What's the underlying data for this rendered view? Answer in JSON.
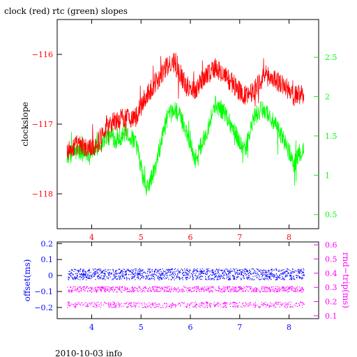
{
  "chart_data": [
    {
      "type": "line",
      "title": "clock (red) rtc (green) slopes",
      "xlabel": "",
      "ylabel": "clockslope",
      "xlim": [
        3.3,
        8.6
      ],
      "ylim": [
        -118.5,
        -115.5
      ],
      "y2lim": [
        0.32,
        2.98
      ],
      "x_ticks": [
        4,
        5,
        6,
        7,
        8
      ],
      "y_ticks": [
        -118,
        -117,
        -116
      ],
      "y2_ticks": [
        0.5,
        1,
        1.5,
        2,
        2.5
      ],
      "x_tick_labels": [
        "4",
        "5",
        "6",
        "7",
        "8"
      ],
      "y_tick_labels": [
        "−118",
        "−117",
        "−116"
      ],
      "y2_tick_labels": [
        "0.5",
        "1",
        "1.5",
        "2",
        "2.5"
      ],
      "grid": false,
      "series": [
        {
          "name": "clock",
          "color": "#ff0000",
          "axis": "left",
          "x": [
            3.5,
            3.7,
            3.9,
            4.1,
            4.3,
            4.5,
            4.7,
            4.9,
            5.1,
            5.3,
            5.5,
            5.7,
            5.9,
            6.1,
            6.3,
            6.5,
            6.7,
            6.9,
            7.1,
            7.3,
            7.5,
            7.7,
            7.9,
            8.1,
            8.3
          ],
          "y": [
            -117.4,
            -117.3,
            -117.35,
            -117.3,
            -117.0,
            -116.95,
            -116.9,
            -116.9,
            -116.6,
            -116.4,
            -116.2,
            -116.1,
            -116.45,
            -116.5,
            -116.3,
            -116.2,
            -116.3,
            -116.45,
            -116.6,
            -116.5,
            -116.3,
            -116.35,
            -116.45,
            -116.6,
            -116.55
          ],
          "noise": 0.15
        },
        {
          "name": "rtc",
          "color": "#00ff00",
          "axis": "right",
          "x": [
            3.5,
            3.7,
            3.9,
            4.1,
            4.3,
            4.5,
            4.7,
            4.9,
            5.1,
            5.3,
            5.5,
            5.7,
            5.9,
            6.1,
            6.3,
            6.5,
            6.7,
            6.9,
            7.1,
            7.3,
            7.5,
            7.7,
            7.9,
            8.1,
            8.3
          ],
          "y": [
            1.25,
            1.3,
            1.28,
            1.35,
            1.5,
            1.45,
            1.55,
            1.4,
            0.8,
            1.1,
            1.7,
            1.85,
            1.6,
            1.2,
            1.5,
            1.9,
            1.8,
            1.55,
            1.3,
            1.75,
            1.85,
            1.65,
            1.45,
            1.15,
            1.35
          ],
          "noise": 0.12
        }
      ]
    },
    {
      "type": "scatter",
      "title": "",
      "xlabel": "",
      "ylabel": "offset(ms)",
      "y2label": "rnd−trip(ms)",
      "xlim": [
        3.3,
        8.6
      ],
      "ylim": [
        -0.27,
        0.21
      ],
      "y2lim": [
        0.08,
        0.62
      ],
      "x_ticks": [
        4,
        5,
        6,
        7,
        8
      ],
      "y_ticks": [
        -0.2,
        -0.1,
        0,
        0.1,
        0.2
      ],
      "y2_ticks": [
        0.1,
        0.2,
        0.3,
        0.4,
        0.5,
        0.6
      ],
      "x_tick_labels": [
        "4",
        "5",
        "6",
        "7",
        "8"
      ],
      "y_tick_labels": [
        "−0.2",
        "−0.1",
        "0",
        "0.1",
        "0.2"
      ],
      "y2_tick_labels": [
        "0.1",
        "0.2",
        "0.3",
        "0.4",
        "0.5",
        "0.6"
      ],
      "grid": false,
      "series": [
        {
          "name": "offset",
          "color": "#0000ff",
          "axis": "left",
          "x_range": [
            3.5,
            8.3
          ],
          "center": 0.01,
          "spread": 0.035
        },
        {
          "name": "rnd-trip",
          "color": "#ff00ff",
          "axis": "right",
          "x_range": [
            3.5,
            8.3
          ],
          "center": 0.29,
          "spread": 0.02,
          "secondary_center": 0.18,
          "secondary_spread": 0.02
        }
      ]
    }
  ],
  "footer": "2010-10-03 info"
}
